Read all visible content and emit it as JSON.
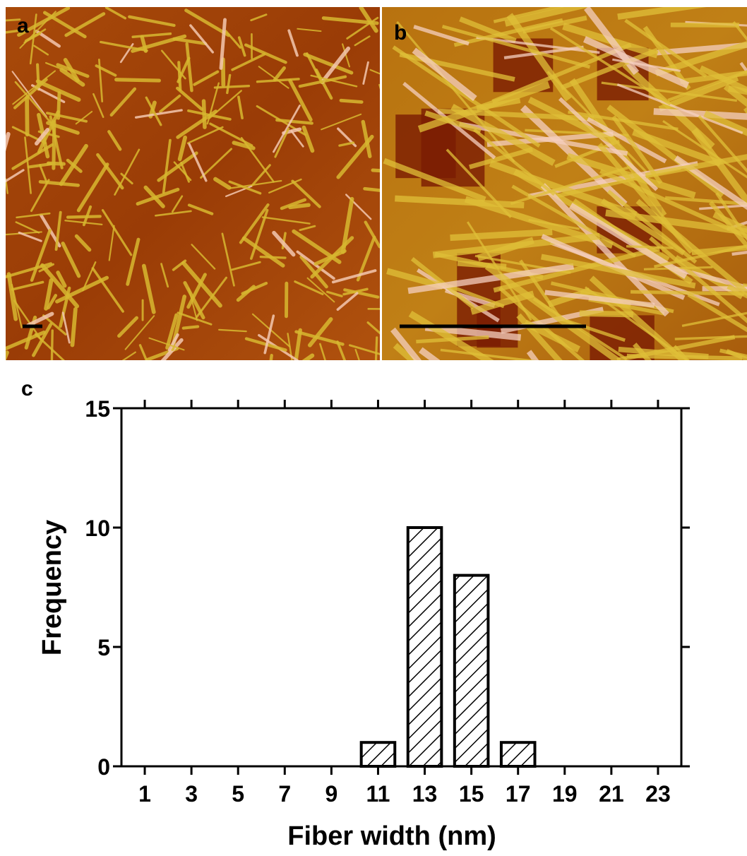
{
  "images": [
    {
      "label": "a"
    },
    {
      "label": "b"
    }
  ],
  "chart_data": {
    "type": "bar",
    "label": "c",
    "x_label": "Fiber width (nm)",
    "y_label": "Frequency",
    "categories": [
      "1",
      "3",
      "5",
      "7",
      "9",
      "11",
      "13",
      "15",
      "17",
      "19",
      "21",
      "23"
    ],
    "values": [
      0,
      0,
      0,
      0,
      0,
      1,
      10,
      8,
      1,
      0,
      0,
      0
    ],
    "ylim": [
      0,
      15
    ],
    "yticks": [
      0,
      5,
      10,
      15
    ],
    "color": "#ffffff",
    "hatch": true
  }
}
